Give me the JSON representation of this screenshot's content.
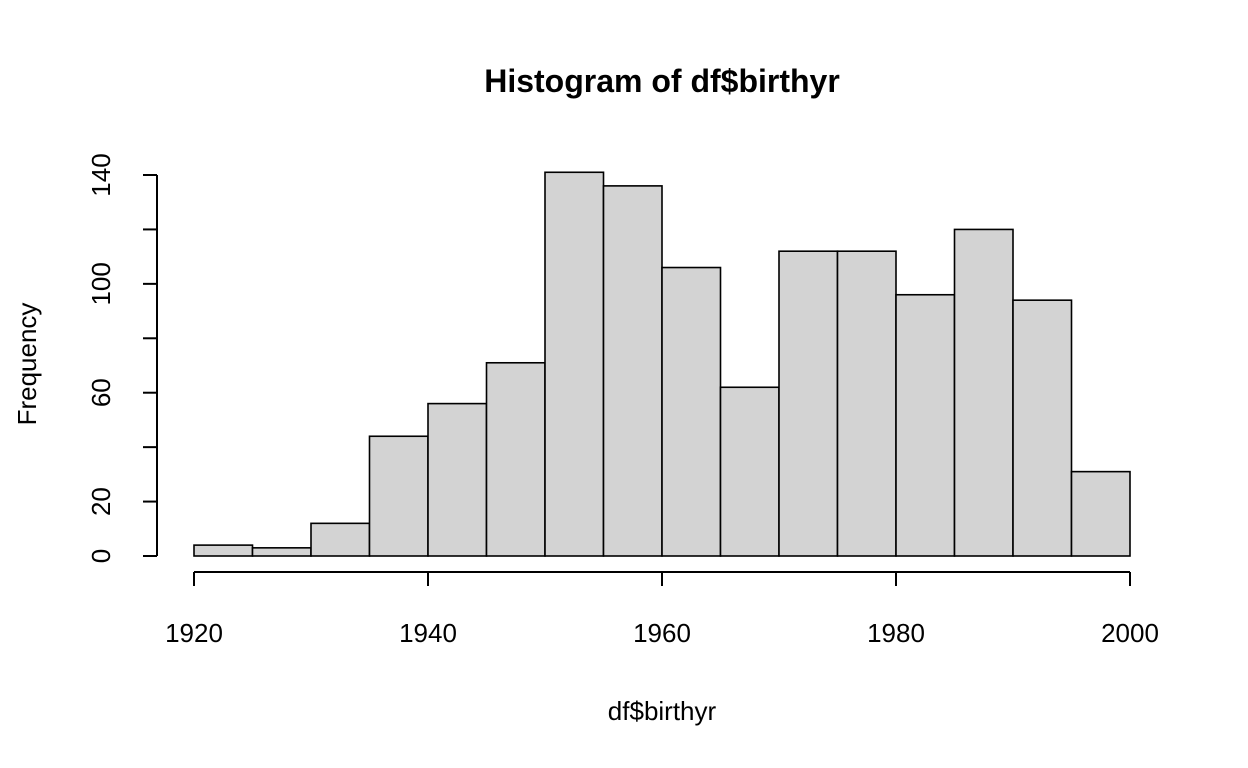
{
  "chart_data": {
    "type": "bar",
    "title": "Histogram of df$birthyr",
    "xlabel": "df$birthyr",
    "ylabel": "Frequency",
    "bins": [
      {
        "start": 1920,
        "end": 1925,
        "count": 4
      },
      {
        "start": 1925,
        "end": 1930,
        "count": 3
      },
      {
        "start": 1930,
        "end": 1935,
        "count": 12
      },
      {
        "start": 1935,
        "end": 1940,
        "count": 44
      },
      {
        "start": 1940,
        "end": 1945,
        "count": 56
      },
      {
        "start": 1945,
        "end": 1950,
        "count": 71
      },
      {
        "start": 1950,
        "end": 1955,
        "count": 141
      },
      {
        "start": 1955,
        "end": 1960,
        "count": 136
      },
      {
        "start": 1960,
        "end": 1965,
        "count": 106
      },
      {
        "start": 1965,
        "end": 1970,
        "count": 62
      },
      {
        "start": 1970,
        "end": 1975,
        "count": 112
      },
      {
        "start": 1975,
        "end": 1980,
        "count": 112
      },
      {
        "start": 1980,
        "end": 1985,
        "count": 96
      },
      {
        "start": 1985,
        "end": 1990,
        "count": 120
      },
      {
        "start": 1990,
        "end": 1995,
        "count": 94
      },
      {
        "start": 1995,
        "end": 2000,
        "count": 31
      }
    ],
    "xlim": [
      1920,
      2000
    ],
    "ylim": [
      0,
      140
    ],
    "x_ticks": [
      "1920",
      "1940",
      "1960",
      "1980",
      "2000"
    ],
    "y_ticks": [
      "0",
      "20",
      "60",
      "100",
      "140"
    ],
    "y_minor_ticks": [
      40,
      80,
      120
    ],
    "bar_fill": "#d3d3d3",
    "bar_stroke": "#000000",
    "grid": false,
    "legend": "none"
  }
}
